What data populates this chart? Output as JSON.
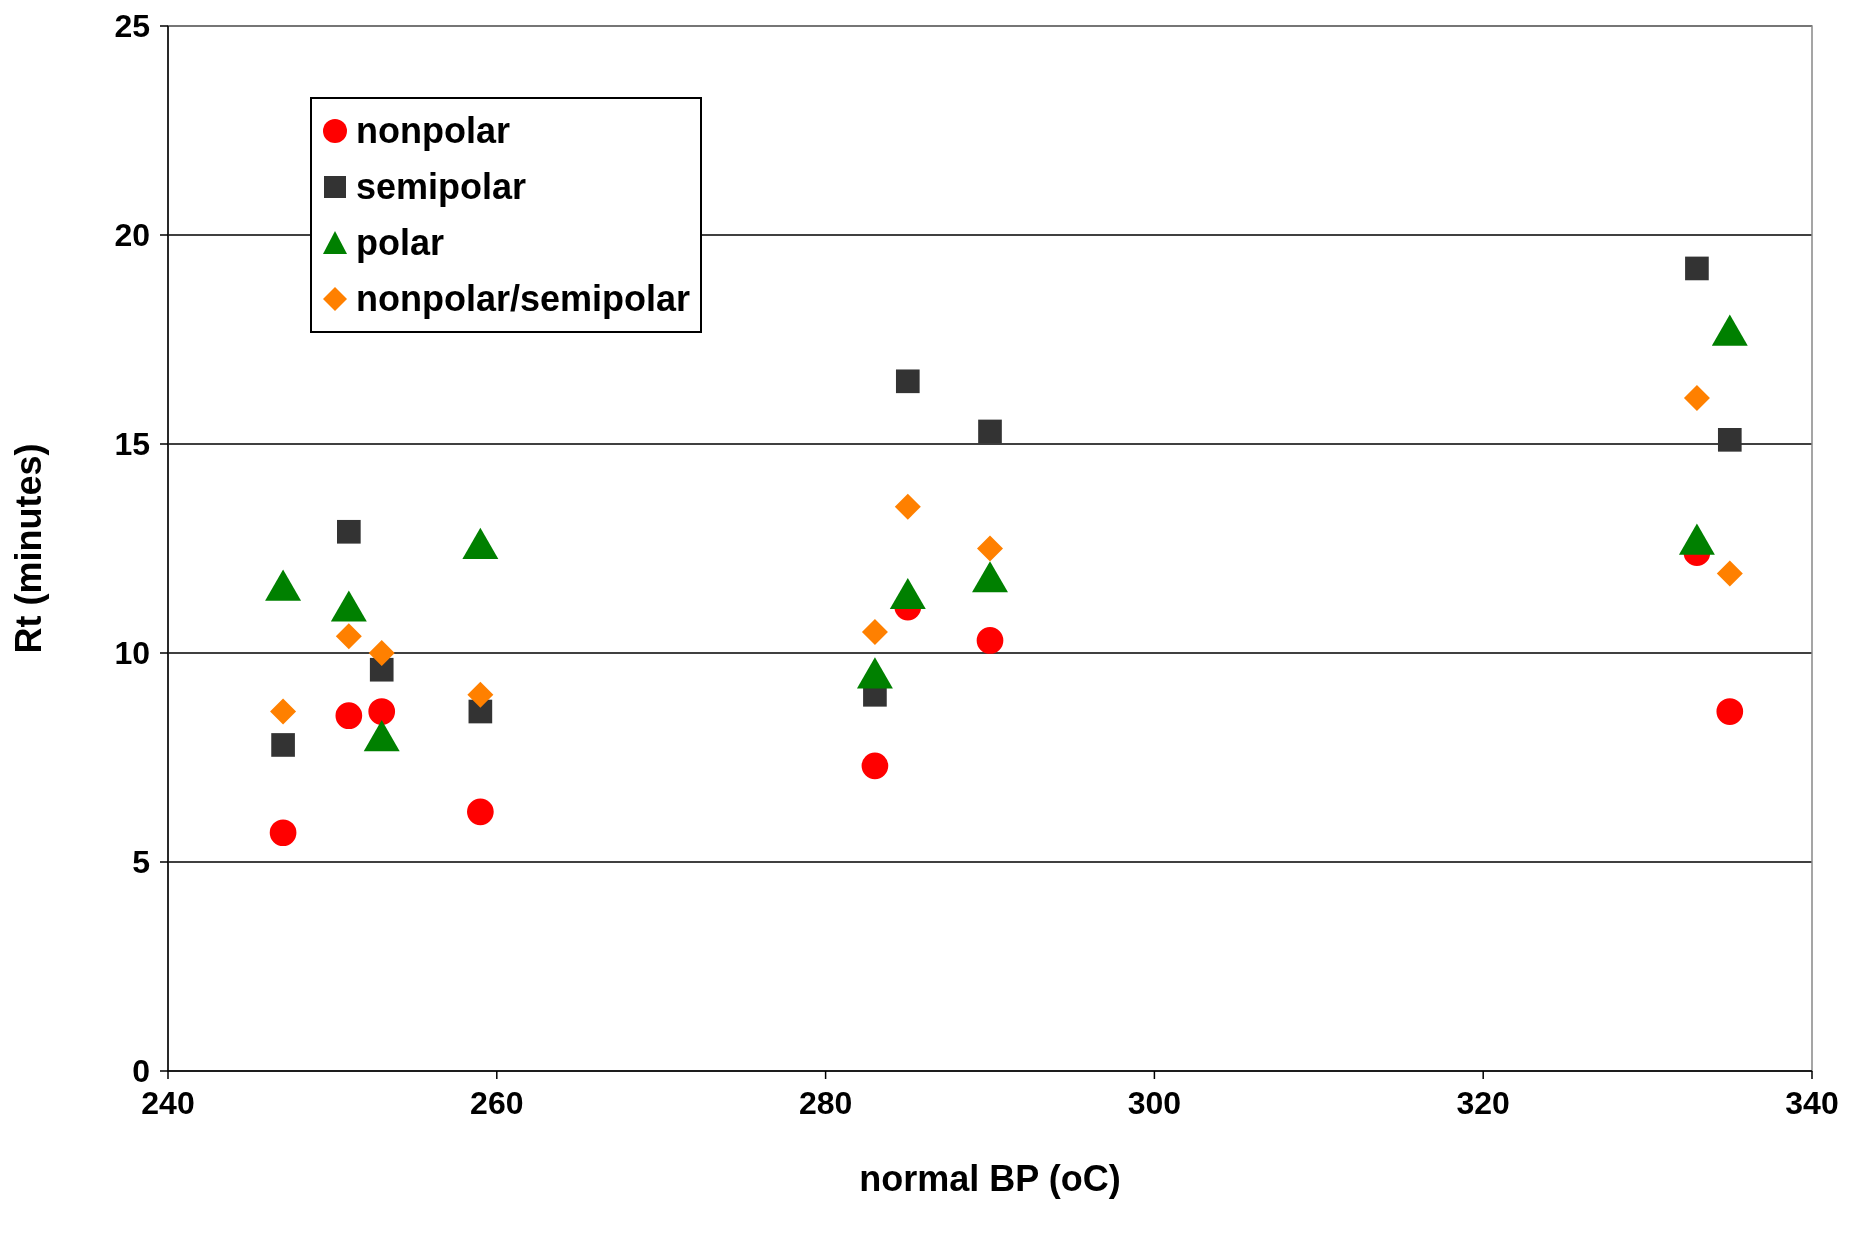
{
  "chart_data": {
    "type": "scatter",
    "xlabel": "normal BP (oC)",
    "ylabel": "Rt (minutes)",
    "x": [
      247,
      251,
      253,
      259,
      283,
      285,
      290,
      333,
      335
    ],
    "series": [
      {
        "name": "nonpolar",
        "color": "#ff0000",
        "marker": "circle",
        "values": [
          5.7,
          8.5,
          8.6,
          6.2,
          7.3,
          11.1,
          10.3,
          12.4,
          8.6
        ]
      },
      {
        "name": "semipolar",
        "color": "#333333",
        "marker": "square",
        "values": [
          7.8,
          12.9,
          9.6,
          8.6,
          9.0,
          16.5,
          15.3,
          19.2,
          15.1
        ]
      },
      {
        "name": "polar",
        "color": "#008000",
        "marker": "triangle",
        "values": [
          11.5,
          11.0,
          7.9,
          12.5,
          9.4,
          11.3,
          11.7,
          12.6,
          17.6
        ]
      },
      {
        "name": "nonpolar/semipolar",
        "color": "#ff8000",
        "marker": "diamond",
        "values": [
          8.6,
          10.4,
          10.0,
          9.0,
          10.5,
          13.5,
          12.5,
          16.1,
          11.9
        ]
      }
    ],
    "xlim": [
      240,
      340
    ],
    "xticks": [
      240,
      260,
      280,
      300,
      320,
      340
    ],
    "ylim": [
      0,
      25
    ],
    "yticks": [
      0,
      5,
      10,
      15,
      20,
      25
    ],
    "grid": "y",
    "legend": "top left"
  }
}
